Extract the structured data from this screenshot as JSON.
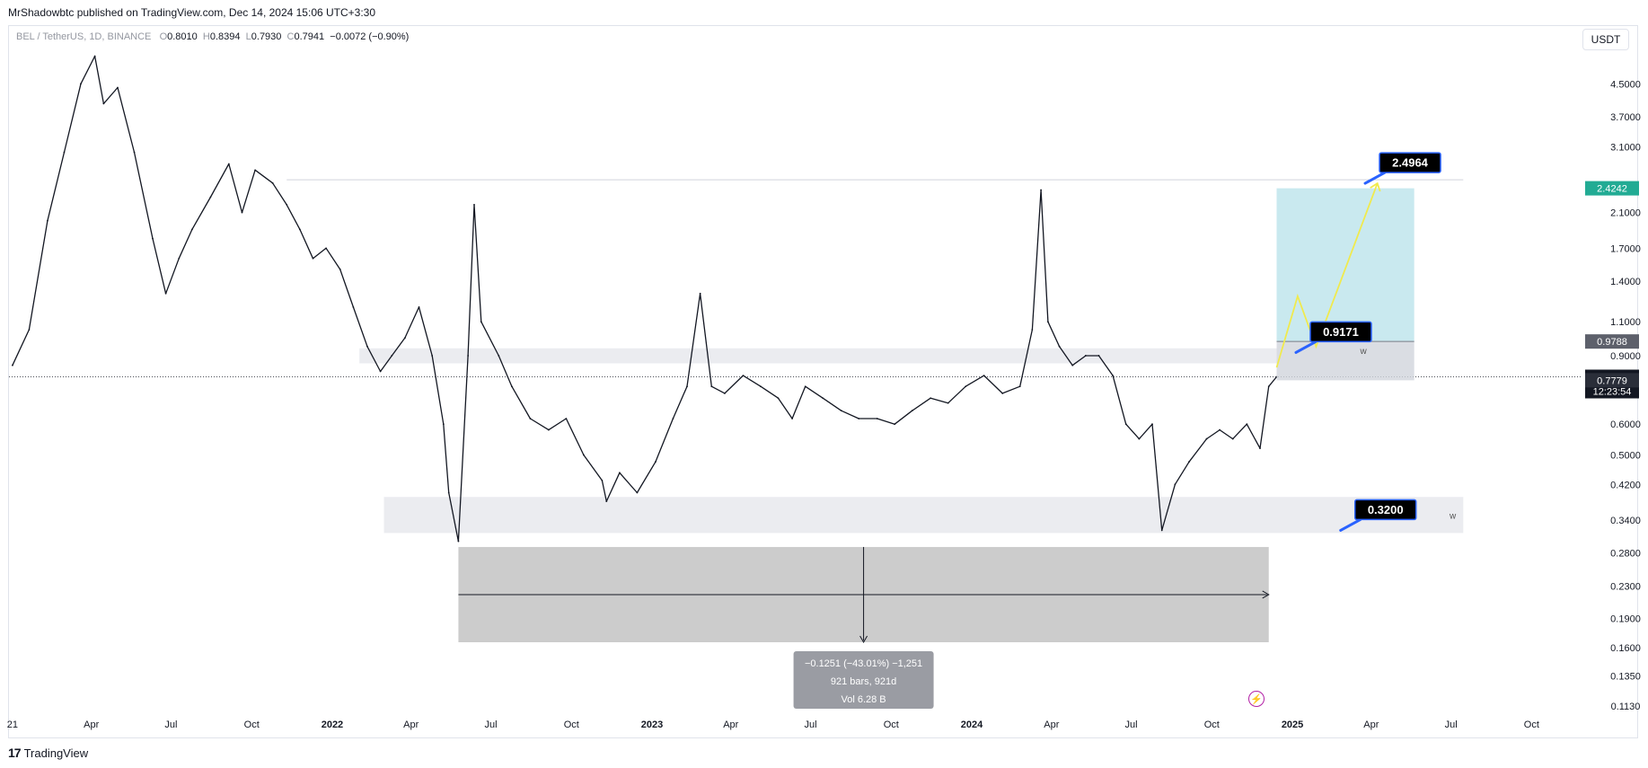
{
  "header": {
    "published_by": "MrShadowbtc published on TradingView.com, Dec 14, 2024 15:06 UTC+3:30"
  },
  "legend": {
    "symbol": "BEL / TetherUS, 1D, BINANCE",
    "open_label": "O",
    "open": "0.8010",
    "high_label": "H",
    "high": "0.8394",
    "low_label": "L",
    "low": "0.7930",
    "close_label": "C",
    "close": "0.7941",
    "change": "−0.0072 (−0.90%)"
  },
  "currency_button": "USDT",
  "footer": {
    "brand": "TradingView",
    "brand_icon": "tradingview-logo-icon"
  },
  "colors": {
    "candles": "#131722",
    "target_zone": "#b2dfe8",
    "stop_zone": "#d1d4dc",
    "support_zone": "#ebecf0",
    "path_line": "#f0ea4e",
    "callout_bg": "#000000",
    "callout_border": "#2962ff",
    "target_price_badge": "#22ab94",
    "measure_box": "#c9c9c9",
    "measure_label_bg": "#9a9ca3"
  },
  "chart_data": {
    "type": "line",
    "series": [],
    "y_scale": "log",
    "ylim": [
      0.105,
      6.3
    ],
    "y_ticks": [
      "4.5000",
      "3.7000",
      "3.1000",
      "2.1000",
      "1.7000",
      "1.4000",
      "1.1000",
      "0.9000",
      "0.6000",
      "0.5000",
      "0.4200",
      "0.3400",
      "0.2800",
      "0.2300",
      "0.1900",
      "0.1600",
      "0.1350",
      "0.1130"
    ],
    "x_ticks": [
      "21",
      "Apr",
      "Jul",
      "Oct",
      "2022",
      "Apr",
      "Jul",
      "Oct",
      "2023",
      "Apr",
      "Jul",
      "Oct",
      "2024",
      "Apr",
      "Jul",
      "Oct",
      "2025",
      "Apr",
      "Jul",
      "Oct"
    ],
    "price_series": {
      "dates": [
        "2021-01-01",
        "2021-01-20",
        "2021-02-10",
        "2021-03-01",
        "2021-03-20",
        "2021-04-05",
        "2021-04-15",
        "2021-05-01",
        "2021-05-20",
        "2021-06-10",
        "2021-06-25",
        "2021-07-10",
        "2021-07-25",
        "2021-08-15",
        "2021-09-05",
        "2021-09-20",
        "2021-10-05",
        "2021-10-25",
        "2021-11-10",
        "2021-11-25",
        "2021-12-10",
        "2021-12-25",
        "2022-01-10",
        "2022-01-25",
        "2022-02-10",
        "2022-02-25",
        "2022-03-10",
        "2022-03-25",
        "2022-04-10",
        "2022-04-25",
        "2022-05-08",
        "2022-05-14",
        "2022-05-25",
        "2022-06-05",
        "2022-06-12",
        "2022-06-20",
        "2022-07-10",
        "2022-07-25",
        "2022-08-15",
        "2022-09-05",
        "2022-09-25",
        "2022-10-15",
        "2022-11-05",
        "2022-11-10",
        "2022-11-25",
        "2022-12-15",
        "2023-01-05",
        "2023-01-25",
        "2023-02-10",
        "2023-02-25",
        "2023-03-10",
        "2023-03-25",
        "2023-04-15",
        "2023-05-05",
        "2023-05-25",
        "2023-06-10",
        "2023-06-25",
        "2023-07-15",
        "2023-08-05",
        "2023-08-25",
        "2023-09-15",
        "2023-10-05",
        "2023-10-25",
        "2023-11-15",
        "2023-12-05",
        "2023-12-25",
        "2024-01-15",
        "2024-02-05",
        "2024-02-25",
        "2024-03-10",
        "2024-03-20",
        "2024-03-28",
        "2024-04-10",
        "2024-04-25",
        "2024-05-10",
        "2024-05-25",
        "2024-06-10",
        "2024-06-25",
        "2024-07-10",
        "2024-07-25",
        "2024-08-05",
        "2024-08-20",
        "2024-09-05",
        "2024-09-25",
        "2024-10-10",
        "2024-10-25",
        "2024-11-10",
        "2024-11-25",
        "2024-12-05",
        "2024-12-14"
      ],
      "values": [
        0.85,
        1.05,
        2.0,
        3.0,
        4.5,
        5.3,
        4.0,
        4.4,
        3.0,
        1.8,
        1.3,
        1.6,
        1.9,
        2.3,
        2.8,
        2.1,
        2.7,
        2.5,
        2.2,
        1.9,
        1.6,
        1.7,
        1.5,
        1.2,
        0.95,
        0.82,
        0.9,
        1.0,
        1.2,
        0.9,
        0.6,
        0.4,
        0.3,
        0.9,
        2.2,
        1.1,
        0.9,
        0.75,
        0.62,
        0.58,
        0.62,
        0.5,
        0.43,
        0.38,
        0.45,
        0.4,
        0.48,
        0.62,
        0.75,
        1.3,
        0.75,
        0.72,
        0.8,
        0.75,
        0.7,
        0.62,
        0.75,
        0.7,
        0.65,
        0.62,
        0.62,
        0.6,
        0.65,
        0.7,
        0.68,
        0.75,
        0.8,
        0.72,
        0.75,
        1.05,
        2.4,
        1.1,
        0.95,
        0.85,
        0.9,
        0.9,
        0.8,
        0.6,
        0.55,
        0.6,
        0.32,
        0.42,
        0.48,
        0.55,
        0.58,
        0.55,
        0.6,
        0.52,
        0.75,
        0.7941
      ]
    },
    "projection_path": {
      "dates": [
        "2024-12-14",
        "2025-01-07",
        "2025-01-28",
        "2025-04-08"
      ],
      "values": [
        0.8394,
        1.28,
        0.95,
        2.4964
      ]
    },
    "zones": [
      {
        "name": "resistance",
        "from": "2022-02-01",
        "to": "2024-12-14",
        "low": 0.86,
        "high": 0.94
      },
      {
        "name": "support",
        "from": "2022-03-01",
        "to": "2025-07-15",
        "low": 0.315,
        "high": 0.39,
        "label": "w"
      },
      {
        "name": "top-line",
        "from": "2021-11-10",
        "to": "2025-07-15",
        "value": 2.55
      }
    ],
    "position": {
      "from": "2024-12-14",
      "to": "2025-05-20",
      "entry": 0.9788,
      "target": 2.4242,
      "stop": 0.7779,
      "label": "w"
    },
    "callouts": [
      {
        "text": "2.4964",
        "price": 2.4964,
        "anchor_date": "2025-03-25"
      },
      {
        "text": "0.9171",
        "price": 0.9171,
        "anchor_date": "2025-01-05"
      },
      {
        "text": "0.3200",
        "price": 0.32,
        "anchor_date": "2025-02-25"
      }
    ],
    "price_labels": [
      {
        "text": "2.4242",
        "price": 2.4242,
        "kind": "target"
      },
      {
        "text": "0.9788",
        "price": 0.9788,
        "kind": "entry"
      },
      {
        "text": "0.7941",
        "price": 0.7941,
        "kind": "last",
        "countdown": "12:23:54"
      },
      {
        "text": "0.7779",
        "price": 0.7779,
        "kind": "stop"
      }
    ],
    "last_price": 0.7941,
    "measurement": {
      "from": "2022-05-25",
      "to": "2024-12-05",
      "high": 0.29,
      "low": 0.165,
      "line1": "−0.1251 (−43.01%) −1,251",
      "line2": "921 bars, 921d",
      "line3": "Vol 6.28 B"
    }
  }
}
